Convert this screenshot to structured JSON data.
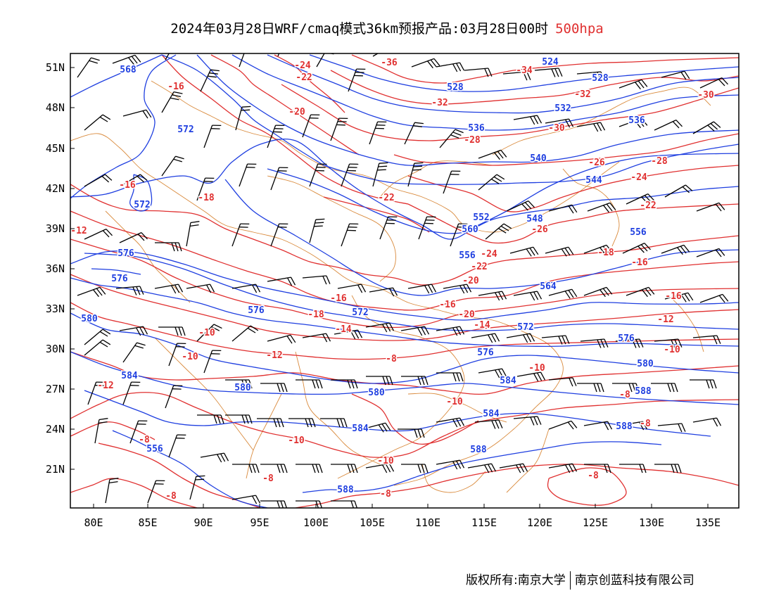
{
  "title": {
    "main": "2024年03月28日WRF/cmaq模式36km预报产品:03月28日00时",
    "level": "500hpa"
  },
  "axes": {
    "lon_labels": [
      "80E",
      "85E",
      "90E",
      "95E",
      "100E",
      "105E",
      "110E",
      "115E",
      "120E",
      "125E",
      "130E",
      "135E"
    ],
    "lat_labels": [
      "51N",
      "48N",
      "45N",
      "42N",
      "39N",
      "36N",
      "33N",
      "30N",
      "27N",
      "24N",
      "21N"
    ]
  },
  "colors": {
    "height_contour": "#1f3fe0",
    "temperature_contour": "#e03030",
    "boundary": "#d98a3c",
    "wind_barb": "#000000"
  },
  "height_labels": [
    "568",
    "524",
    "528",
    "528",
    "532",
    "536",
    "572",
    "536",
    "540",
    "544",
    "548",
    "572",
    "552",
    "556",
    "560",
    "576",
    "576",
    "564",
    "576",
    "572",
    "580",
    "576",
    "572",
    "580",
    "584",
    "576",
    "580",
    "580",
    "584",
    "588",
    "584",
    "588",
    "588",
    "584",
    "588",
    "556",
    "556"
  ],
  "temp_labels": [
    "-24",
    "-22",
    "-36",
    "-34",
    "-32",
    "-30",
    "-16",
    "-20",
    "-32",
    "-30",
    "-28",
    "-26",
    "-28",
    "-24",
    "-22",
    "-18",
    "-16",
    "-22",
    "-26",
    "-12",
    "-24",
    "-22",
    "-20",
    "-18",
    "-16",
    "-16",
    "-16",
    "-18",
    "-20",
    "-16",
    "-10",
    "-14",
    "-14",
    "-12",
    "-12",
    "-10",
    "-8",
    "-10",
    "-10",
    "-12",
    "-10",
    "-8",
    "-10",
    "-8",
    "-8",
    "-8",
    "-8",
    "-8",
    "-8",
    "-10"
  ],
  "footer": {
    "left": "版权所有:南京大学",
    "right": "南京创蓝科技有限公司"
  }
}
